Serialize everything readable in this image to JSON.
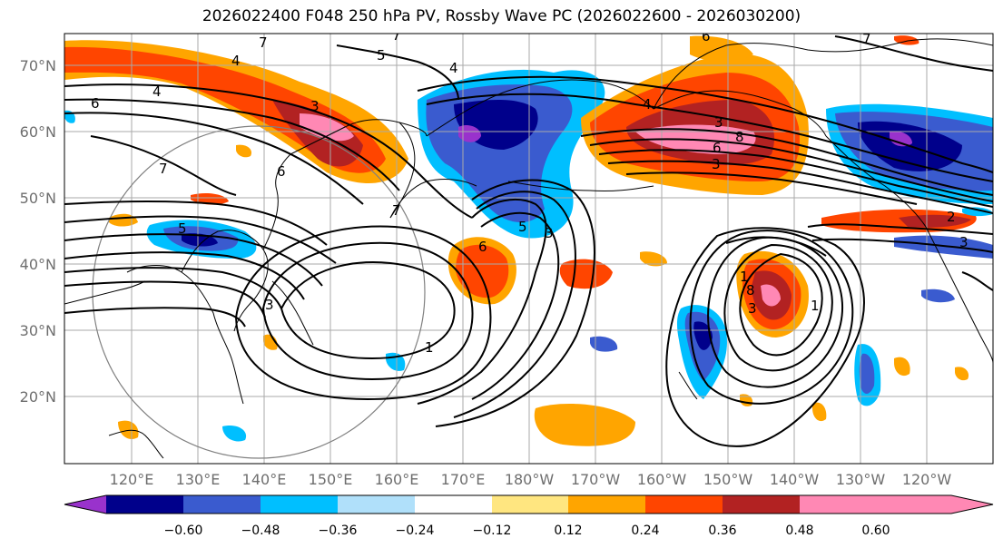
{
  "title": "2026022400 F048 250 hPa PV, Rossby Wave PC (2026022600 - 2026030200)",
  "latitude_labels": [
    "70°N",
    "60°N",
    "50°N",
    "40°N",
    "30°N",
    "20°N"
  ],
  "longitude_labels": [
    "120°E",
    "130°E",
    "140°E",
    "150°E",
    "160°E",
    "170°E",
    "180°W",
    "170°W",
    "160°W",
    "150°W",
    "140°W",
    "130°W",
    "120°W"
  ],
  "colorbar": {
    "tick_labels": [
      "−0.60",
      "−0.48",
      "−0.36",
      "−0.24",
      "−0.12",
      "0.12",
      "0.24",
      "0.36",
      "0.48",
      "0.60"
    ],
    "colors": [
      "#9932cc",
      "#00008b",
      "#3a5bcf",
      "#00bfff",
      "#b0e0fa",
      "#ffffff",
      "#ffe680",
      "#ffa500",
      "#ff4500",
      "#b22222",
      "#ff88b4"
    ]
  },
  "contour_labels": [
    "7",
    "5",
    "4",
    "7",
    "6",
    "4",
    "3",
    "6",
    "7",
    "7",
    "5",
    "1",
    "6",
    "3",
    "4",
    "3",
    "5",
    "7",
    "4",
    "6",
    "8",
    "3",
    "3",
    "6",
    "1",
    "8",
    "3",
    "1",
    "2",
    "3"
  ]
}
